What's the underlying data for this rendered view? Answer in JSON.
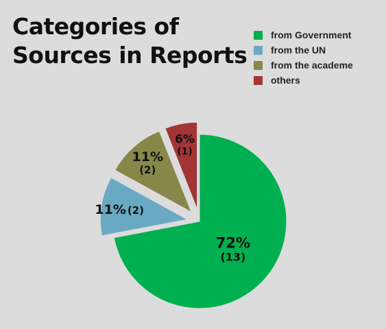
{
  "chart_data": {
    "type": "pie",
    "title_lines": [
      "Categories of",
      "Sources in Reports"
    ],
    "legend": {
      "placement": "top-right"
    },
    "slices": [
      {
        "label": "from Government",
        "value": 72,
        "count": 13,
        "pct_text": "72%",
        "count_text": "(13)",
        "color": "#00b050",
        "exploded": false
      },
      {
        "label": "from the UN",
        "value": 11,
        "count": 2,
        "pct_text": "11%",
        "count_text": "(2)",
        "color": "#6aa9c4",
        "exploded": true
      },
      {
        "label": "from the academe",
        "value": 11,
        "count": 2,
        "pct_text": "11%",
        "count_text": "(2)",
        "color": "#87874a",
        "exploded": true
      },
      {
        "label": "others",
        "value": 6,
        "count": 1,
        "pct_text": "6%",
        "count_text": "(1)",
        "color": "#a23535",
        "exploded": true
      }
    ]
  }
}
